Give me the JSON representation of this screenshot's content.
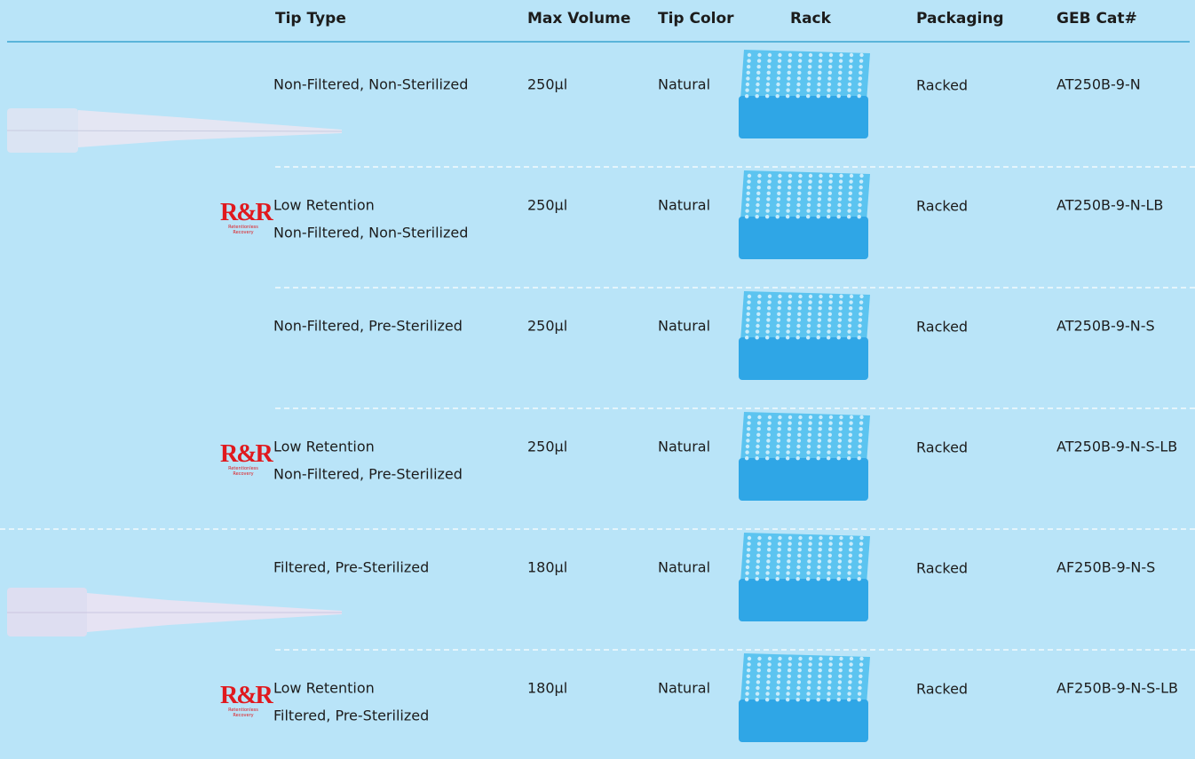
{
  "header": {
    "tip_type": "Tip Type",
    "max_volume": "Max Volume",
    "tip_color": "Tip Color",
    "rack": "Rack",
    "packaging": "Packaging",
    "cat": "GEB Cat#"
  },
  "rows": [
    {
      "tip_type": [
        "Non-Filtered, Non-Sterilized"
      ],
      "max_volume": "250µl",
      "tip_color": "Natural",
      "packaging": "Racked",
      "cat": "AT250B-9-N"
    },
    {
      "logo": {
        "mark": "R&R",
        "caption": "Retentionless Recovery"
      },
      "tip_type": [
        "Low Retention",
        "Non-Filtered, Non-Sterilized"
      ],
      "max_volume": "250µl",
      "tip_color": "Natural",
      "packaging": "Racked",
      "cat": "AT250B-9-N-LB"
    },
    {
      "tip_type": [
        "Non-Filtered, Pre-Sterilized"
      ],
      "max_volume": "250µl",
      "tip_color": "Natural",
      "packaging": "Racked",
      "cat": "AT250B-9-N-S"
    },
    {
      "logo": {
        "mark": "R&R",
        "caption": "Retentionless Recovery"
      },
      "tip_type": [
        "Low Retention",
        "Non-Filtered, Pre-Sterilized"
      ],
      "max_volume": "250µl",
      "tip_color": "Natural",
      "packaging": "Racked",
      "cat": "AT250B-9-N-S-LB"
    },
    {
      "tip_type": [
        "Filtered, Pre-Sterilized"
      ],
      "max_volume": "180µl",
      "tip_color": "Natural",
      "packaging": "Racked",
      "cat": "AF250B-9-N-S"
    },
    {
      "logo": {
        "mark": "R&R",
        "caption": "Retentionless Recovery"
      },
      "tip_type": [
        "Low Retention",
        "Filtered, Pre-Sterilized"
      ],
      "max_volume": "180µl",
      "tip_color": "Natural",
      "packaging": "Racked",
      "cat": "AF250B-9-N-S-LB"
    }
  ]
}
